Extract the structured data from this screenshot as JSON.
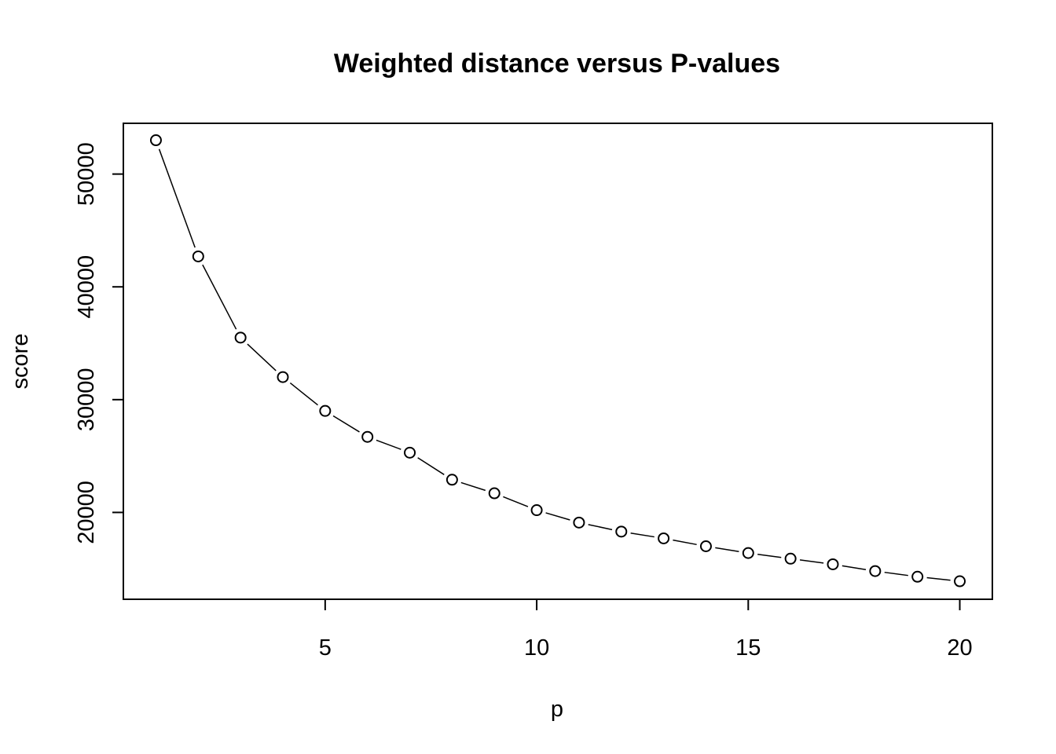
{
  "chart_data": {
    "type": "line",
    "title": "Weighted distance versus P-values",
    "xlabel": "p",
    "ylabel": "score",
    "x": [
      1,
      2,
      3,
      4,
      5,
      6,
      7,
      8,
      9,
      10,
      11,
      12,
      13,
      14,
      15,
      16,
      17,
      18,
      19,
      20
    ],
    "series": [
      {
        "values": [
          53000,
          42700,
          35500,
          32000,
          29000,
          26700,
          25300,
          22900,
          21700,
          20200,
          19100,
          18300,
          17700,
          17000,
          16400,
          15900,
          15400,
          14800,
          14300,
          13900
        ]
      }
    ],
    "xticks": [
      5,
      10,
      15,
      20
    ],
    "yticks": [
      20000,
      30000,
      40000,
      50000
    ],
    "xlim": [
      0.23,
      20.77
    ],
    "ylim": [
      12300,
      54500
    ],
    "markers": "open-circle",
    "line_style": "solid-with-gaps-at-points",
    "grid": false,
    "legend": "none"
  }
}
